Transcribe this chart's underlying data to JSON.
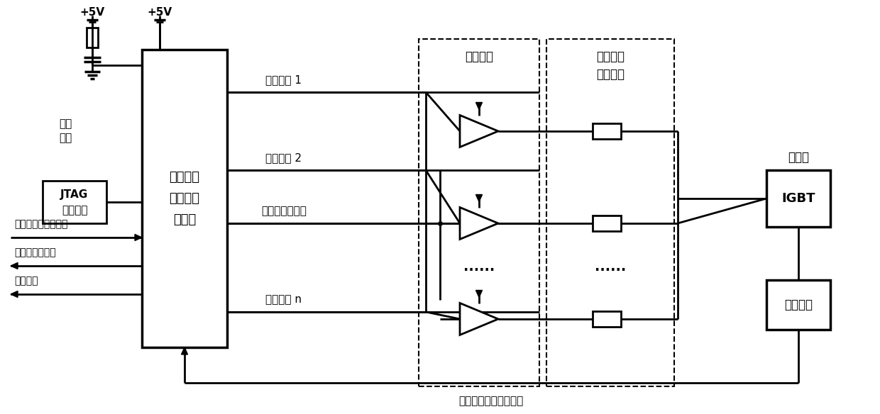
{
  "bg_color": "#ffffff",
  "line_color": "#000000",
  "text_color": "#000000",
  "v5v_1_label": "+5V",
  "v5v_2_label": "+5V",
  "fuwei_label": "复位\n电路",
  "jtag_line1": "JTAG",
  "jtag_line2": "下载接口",
  "chip_line1": "脉冲分配",
  "chip_line2": "及数字控",
  "chip_line3": "制芯片",
  "sw1_label": "开关选择 1",
  "sw2_label": "开关选择 2",
  "ctrl_label": "下桥臂控制脉冲",
  "swn_label": "开关选择 n",
  "sw_array_label": "开关阵列",
  "gate_line1": "栅极驱动",
  "gate_line2": "电阻阵列",
  "xia_label": "下桥臂",
  "igbt_label": "IGBT",
  "detect_label": "检测电路",
  "sig_in_label": "下桥臂控制脉冲信号",
  "status_label": "下桥臂状态反馈",
  "fault_label": "故障代码",
  "feedback_label": "过流、过压等反馈信号",
  "dots": "······"
}
